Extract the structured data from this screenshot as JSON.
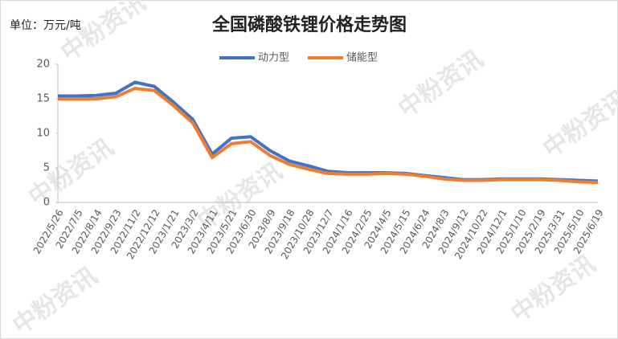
{
  "chart_data": {
    "type": "line",
    "title": "全国磷酸铁锂价格走势图",
    "unit": "单位：万元/吨",
    "watermark": "中粉资讯",
    "categories": [
      "2022/5/26",
      "2022/7/5",
      "2022/8/14",
      "2022/9/23",
      "2022/11/2",
      "2022/12/12",
      "2023/1/21",
      "2023/3/2",
      "2023/4/11",
      "2023/5/21",
      "2023/6/30",
      "2023/8/9",
      "2023/9/18",
      "2023/10/28",
      "2023/12/7",
      "2024/1/16",
      "2024/2/25",
      "2024/4/5",
      "2024/5/15",
      "2024/6/24",
      "2024/8/3",
      "2024/9/12",
      "2024/10/22",
      "2024/12/1",
      "2025/1/10",
      "2025/2/19",
      "2025/3/31",
      "2025/5/10",
      "2025/6/19"
    ],
    "series": [
      {
        "name": "动力型",
        "color": "#4472c4",
        "values": [
          15.4,
          15.4,
          15.5,
          15.8,
          17.4,
          16.8,
          14.5,
          12,
          7.0,
          9.3,
          9.5,
          7.5,
          6.0,
          5.3,
          4.5,
          4.3,
          4.3,
          4.3,
          4.2,
          3.9,
          3.6,
          3.3,
          3.3,
          3.4,
          3.4,
          3.4,
          3.3,
          3.2,
          3.1
        ]
      },
      {
        "name": "储能型",
        "color": "#ed7d31",
        "values": [
          15.0,
          15.0,
          15.0,
          15.3,
          16.5,
          16.2,
          14.0,
          11.5,
          6.5,
          8.5,
          8.8,
          6.8,
          5.5,
          4.8,
          4.2,
          4.1,
          4.1,
          4.2,
          4.1,
          3.8,
          3.4,
          3.2,
          3.2,
          3.3,
          3.3,
          3.3,
          3.2,
          3.0,
          2.9
        ]
      }
    ],
    "ylim": [
      0,
      20
    ],
    "yticks": [
      0,
      5,
      10,
      15,
      20
    ],
    "legend": "top"
  }
}
